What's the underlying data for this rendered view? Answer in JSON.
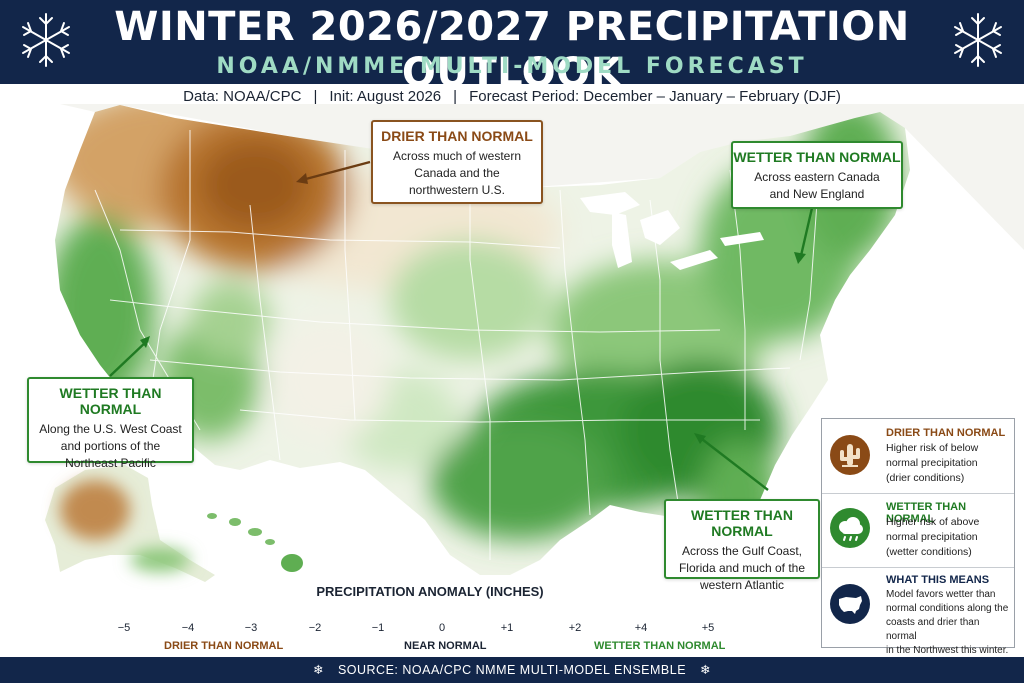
{
  "header": {
    "title": "WINTER 2026/2027 PRECIPITATION OUTLOOK",
    "subtitle": "NOAA/NMME MULTI-MODEL FORECAST"
  },
  "meta": {
    "data": "Data: NOAA/CPC",
    "sep": "|",
    "init": "Init: August 2026",
    "period": "Forecast Period: December – January – February (DJF)"
  },
  "callouts": {
    "northwest": {
      "title": "DRIER THAN NORMAL",
      "body_1": "Across much of western",
      "body_2": "Canada and the",
      "body_3": "northwestern U.S."
    },
    "northeast": {
      "title": "WETTER THAN NORMAL",
      "body_1": "Across eastern Canada",
      "body_2": "and New England"
    },
    "westcoast": {
      "title": "WETTER THAN NORMAL",
      "body_1": "Along the U.S. West Coast",
      "body_2": "and portions of the",
      "body_3": "Northeast Pacific"
    },
    "gulf": {
      "title": "WETTER THAN NORMAL",
      "body_1": "Across the Gulf Coast,",
      "body_2": "Florida and much of the",
      "body_3": "western Atlantic"
    }
  },
  "legend": {
    "drier": {
      "title": "DRIER THAN NORMAL",
      "line_1": "Higher risk of below",
      "line_2": "normal precipitation",
      "line_3": "(drier conditions)",
      "icon": "cactus-icon"
    },
    "wetter": {
      "title": "WETTER THAN NORMAL",
      "line_1": "Higher risk of above",
      "line_2": "normal precipitation",
      "line_3": "(wetter conditions)",
      "icon": "rain-cloud-icon"
    },
    "meaning": {
      "title": "WHAT THIS MEANS",
      "line_1": "Model favors wetter than",
      "line_2": "normal conditions along the",
      "line_3": "coasts and drier than normal",
      "line_4": "in the Northwest this winter.",
      "icon": "us-map-icon"
    }
  },
  "scale": {
    "title": "PRECIPITATION ANOMALY (INCHES)",
    "ticks": [
      "−5",
      "−4",
      "−3",
      "−2",
      "−1",
      "0",
      "+1",
      "+2",
      "+4",
      "+5"
    ],
    "drier_label": "DRIER THAN NORMAL",
    "near_label": "NEAR NORMAL",
    "wetter_label": "WETTER THAN NORMAL"
  },
  "footer": {
    "text": "SOURCE: NOAA/CPC NMME MULTI-MODEL ENSEMBLE"
  },
  "colors": {
    "navy": "#12264a",
    "dry_dark": "#8a5420",
    "wet_dark": "#2f8a2f",
    "subtitle": "#9fdbc4"
  }
}
